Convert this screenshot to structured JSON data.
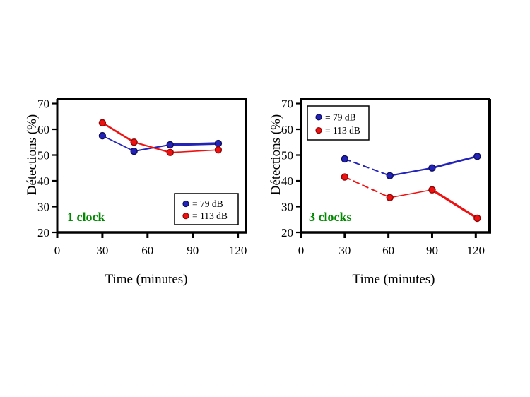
{
  "page": {
    "background": "#ffffff",
    "text_color": "#000000"
  },
  "chart_data": [
    {
      "type": "line",
      "title": "1 clock",
      "annotation": {
        "text": "1 clock",
        "color": "#008800"
      },
      "xlabel": "Time (minutes)",
      "ylabel": "Détections (%)",
      "xlim": [
        0,
        125
      ],
      "ylim": [
        20,
        72
      ],
      "x_ticks": [
        0,
        30,
        60,
        90,
        120
      ],
      "y_ticks": [
        20,
        30,
        40,
        50,
        60,
        70
      ],
      "grid": false,
      "legend": {
        "position": "bottom-right",
        "entries": [
          {
            "label": "= 79 dB"
          },
          {
            "label": "= 113 dB"
          }
        ]
      },
      "series": [
        {
          "name": "79 dB",
          "color": "#2323b8",
          "edge": "#0d0d5e",
          "marker": "circle",
          "x": [
            30,
            51,
            75,
            107
          ],
          "y": [
            57.5,
            51.5,
            54,
            54.5
          ],
          "line_widths": [
            1.6,
            2.0,
            3.6
          ],
          "dashes": [
            null,
            null,
            null
          ]
        },
        {
          "name": "113 dB",
          "color": "#ee1111",
          "edge": "#8f0606",
          "marker": "circle",
          "x": [
            30,
            51,
            75,
            107
          ],
          "y": [
            62.5,
            55,
            51,
            52
          ],
          "line_widths": [
            2.6,
            2.2,
            1.6
          ],
          "dashes": [
            null,
            null,
            null
          ]
        }
      ]
    },
    {
      "type": "line",
      "title": "3 clocks",
      "annotation": {
        "text": "3 clocks",
        "color": "#008800"
      },
      "xlabel": "Time (minutes)",
      "ylabel": "Détections (%)",
      "xlim": [
        0,
        130
      ],
      "ylim": [
        20,
        72
      ],
      "x_ticks": [
        0,
        30,
        60,
        90,
        120
      ],
      "y_ticks": [
        20,
        30,
        40,
        50,
        60,
        70
      ],
      "grid": false,
      "legend": {
        "position": "top-left",
        "entries": [
          {
            "label": "= 79 dB"
          },
          {
            "label": "= 113 dB"
          }
        ]
      },
      "series": [
        {
          "name": "79 dB",
          "color": "#2323b8",
          "edge": "#0d0d5e",
          "marker": "circle",
          "x": [
            30,
            61,
            90,
            121
          ],
          "y": [
            48.5,
            42,
            45,
            49.5
          ],
          "line_widths": [
            2.0,
            2.2,
            2.8
          ],
          "dashes": [
            "8 6",
            null,
            null
          ]
        },
        {
          "name": "113 dB",
          "color": "#ee1111",
          "edge": "#8f0606",
          "marker": "circle",
          "x": [
            30,
            61,
            90,
            121
          ],
          "y": [
            41.5,
            33.5,
            36.5,
            25.5
          ],
          "line_widths": [
            2.0,
            1.6,
            3.2
          ],
          "dashes": [
            "8 6",
            null,
            null
          ]
        }
      ]
    }
  ]
}
